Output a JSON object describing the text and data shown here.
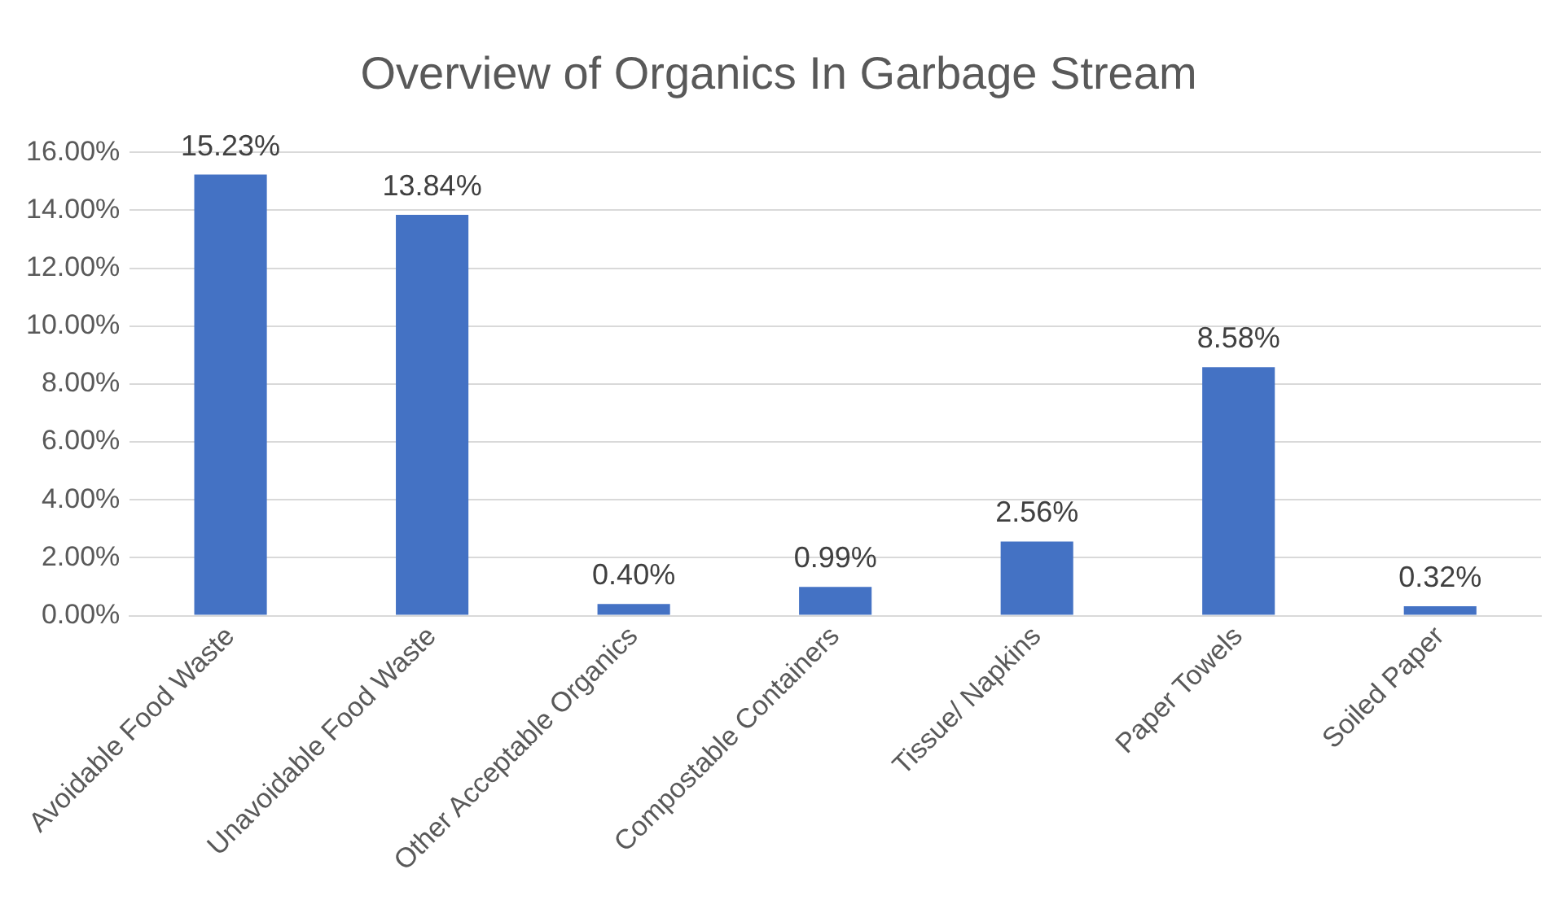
{
  "chart_data": {
    "type": "bar",
    "title": "Overview of Organics In Garbage Stream",
    "categories": [
      "Avoidable Food Waste",
      "Unavoidable Food Waste",
      "Other Acceptable Organics",
      "Compostable Containers",
      "Tissue/ Napkins",
      "Paper Towels",
      "Soiled Paper"
    ],
    "values": [
      15.23,
      13.84,
      0.4,
      0.99,
      2.56,
      8.58,
      0.32
    ],
    "value_labels": [
      "15.23%",
      "13.84%",
      "0.40%",
      "0.99%",
      "2.56%",
      "8.58%",
      "0.32%"
    ],
    "color": "#4472c4",
    "ylim": [
      0,
      16
    ],
    "yticks": [
      {
        "value": 0,
        "label": "0.00%"
      },
      {
        "value": 2,
        "label": "2.00%"
      },
      {
        "value": 4,
        "label": "4.00%"
      },
      {
        "value": 6,
        "label": "6.00%"
      },
      {
        "value": 8,
        "label": "8.00%"
      },
      {
        "value": 10,
        "label": "10.00%"
      },
      {
        "value": 12,
        "label": "12.00%"
      },
      {
        "value": 14,
        "label": "14.00%"
      },
      {
        "value": 16,
        "label": "16.00%"
      }
    ],
    "grid": "y",
    "legend": false
  }
}
